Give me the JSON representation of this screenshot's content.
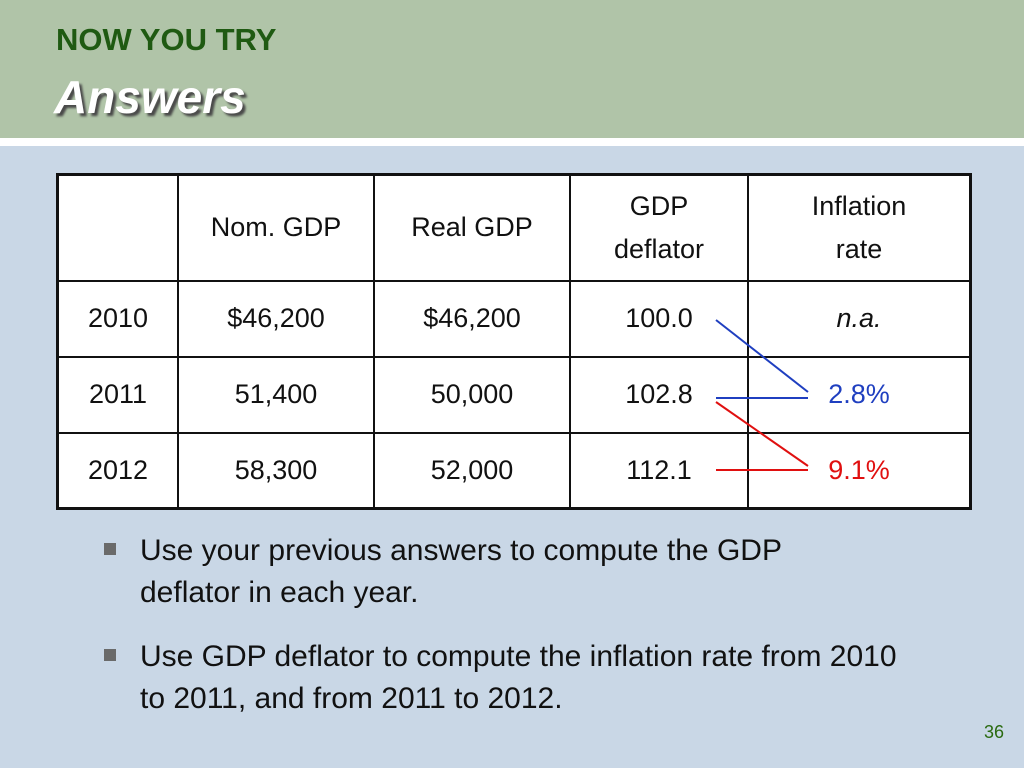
{
  "header": {
    "subtitle": "NOW YOU TRY",
    "title": "Answers"
  },
  "table": {
    "columns": [
      "",
      "Nom. GDP",
      "Real GDP",
      "GDP deflator",
      "Inflation rate"
    ],
    "rows": [
      [
        "2010",
        "$46,200",
        "$46,200",
        "100.0",
        "n.a."
      ],
      [
        "2011",
        "51,400",
        "50,000",
        "102.8",
        "2.8%"
      ],
      [
        "2012",
        "58,300",
        "52,000",
        "112.1",
        "9.1%"
      ]
    ]
  },
  "colors": {
    "link_2011": "#1f3fc0",
    "link_2012": "#e01010",
    "header_bg": "#b0c4a8",
    "slide_bg": "#c9d7e6"
  },
  "bullets": [
    "Use your previous answers to compute the GDP deflator in each year.",
    "Use GDP deflator to compute the inflation rate from 2010 to 2011, and from 2011 to 2012."
  ],
  "page_number": "36"
}
